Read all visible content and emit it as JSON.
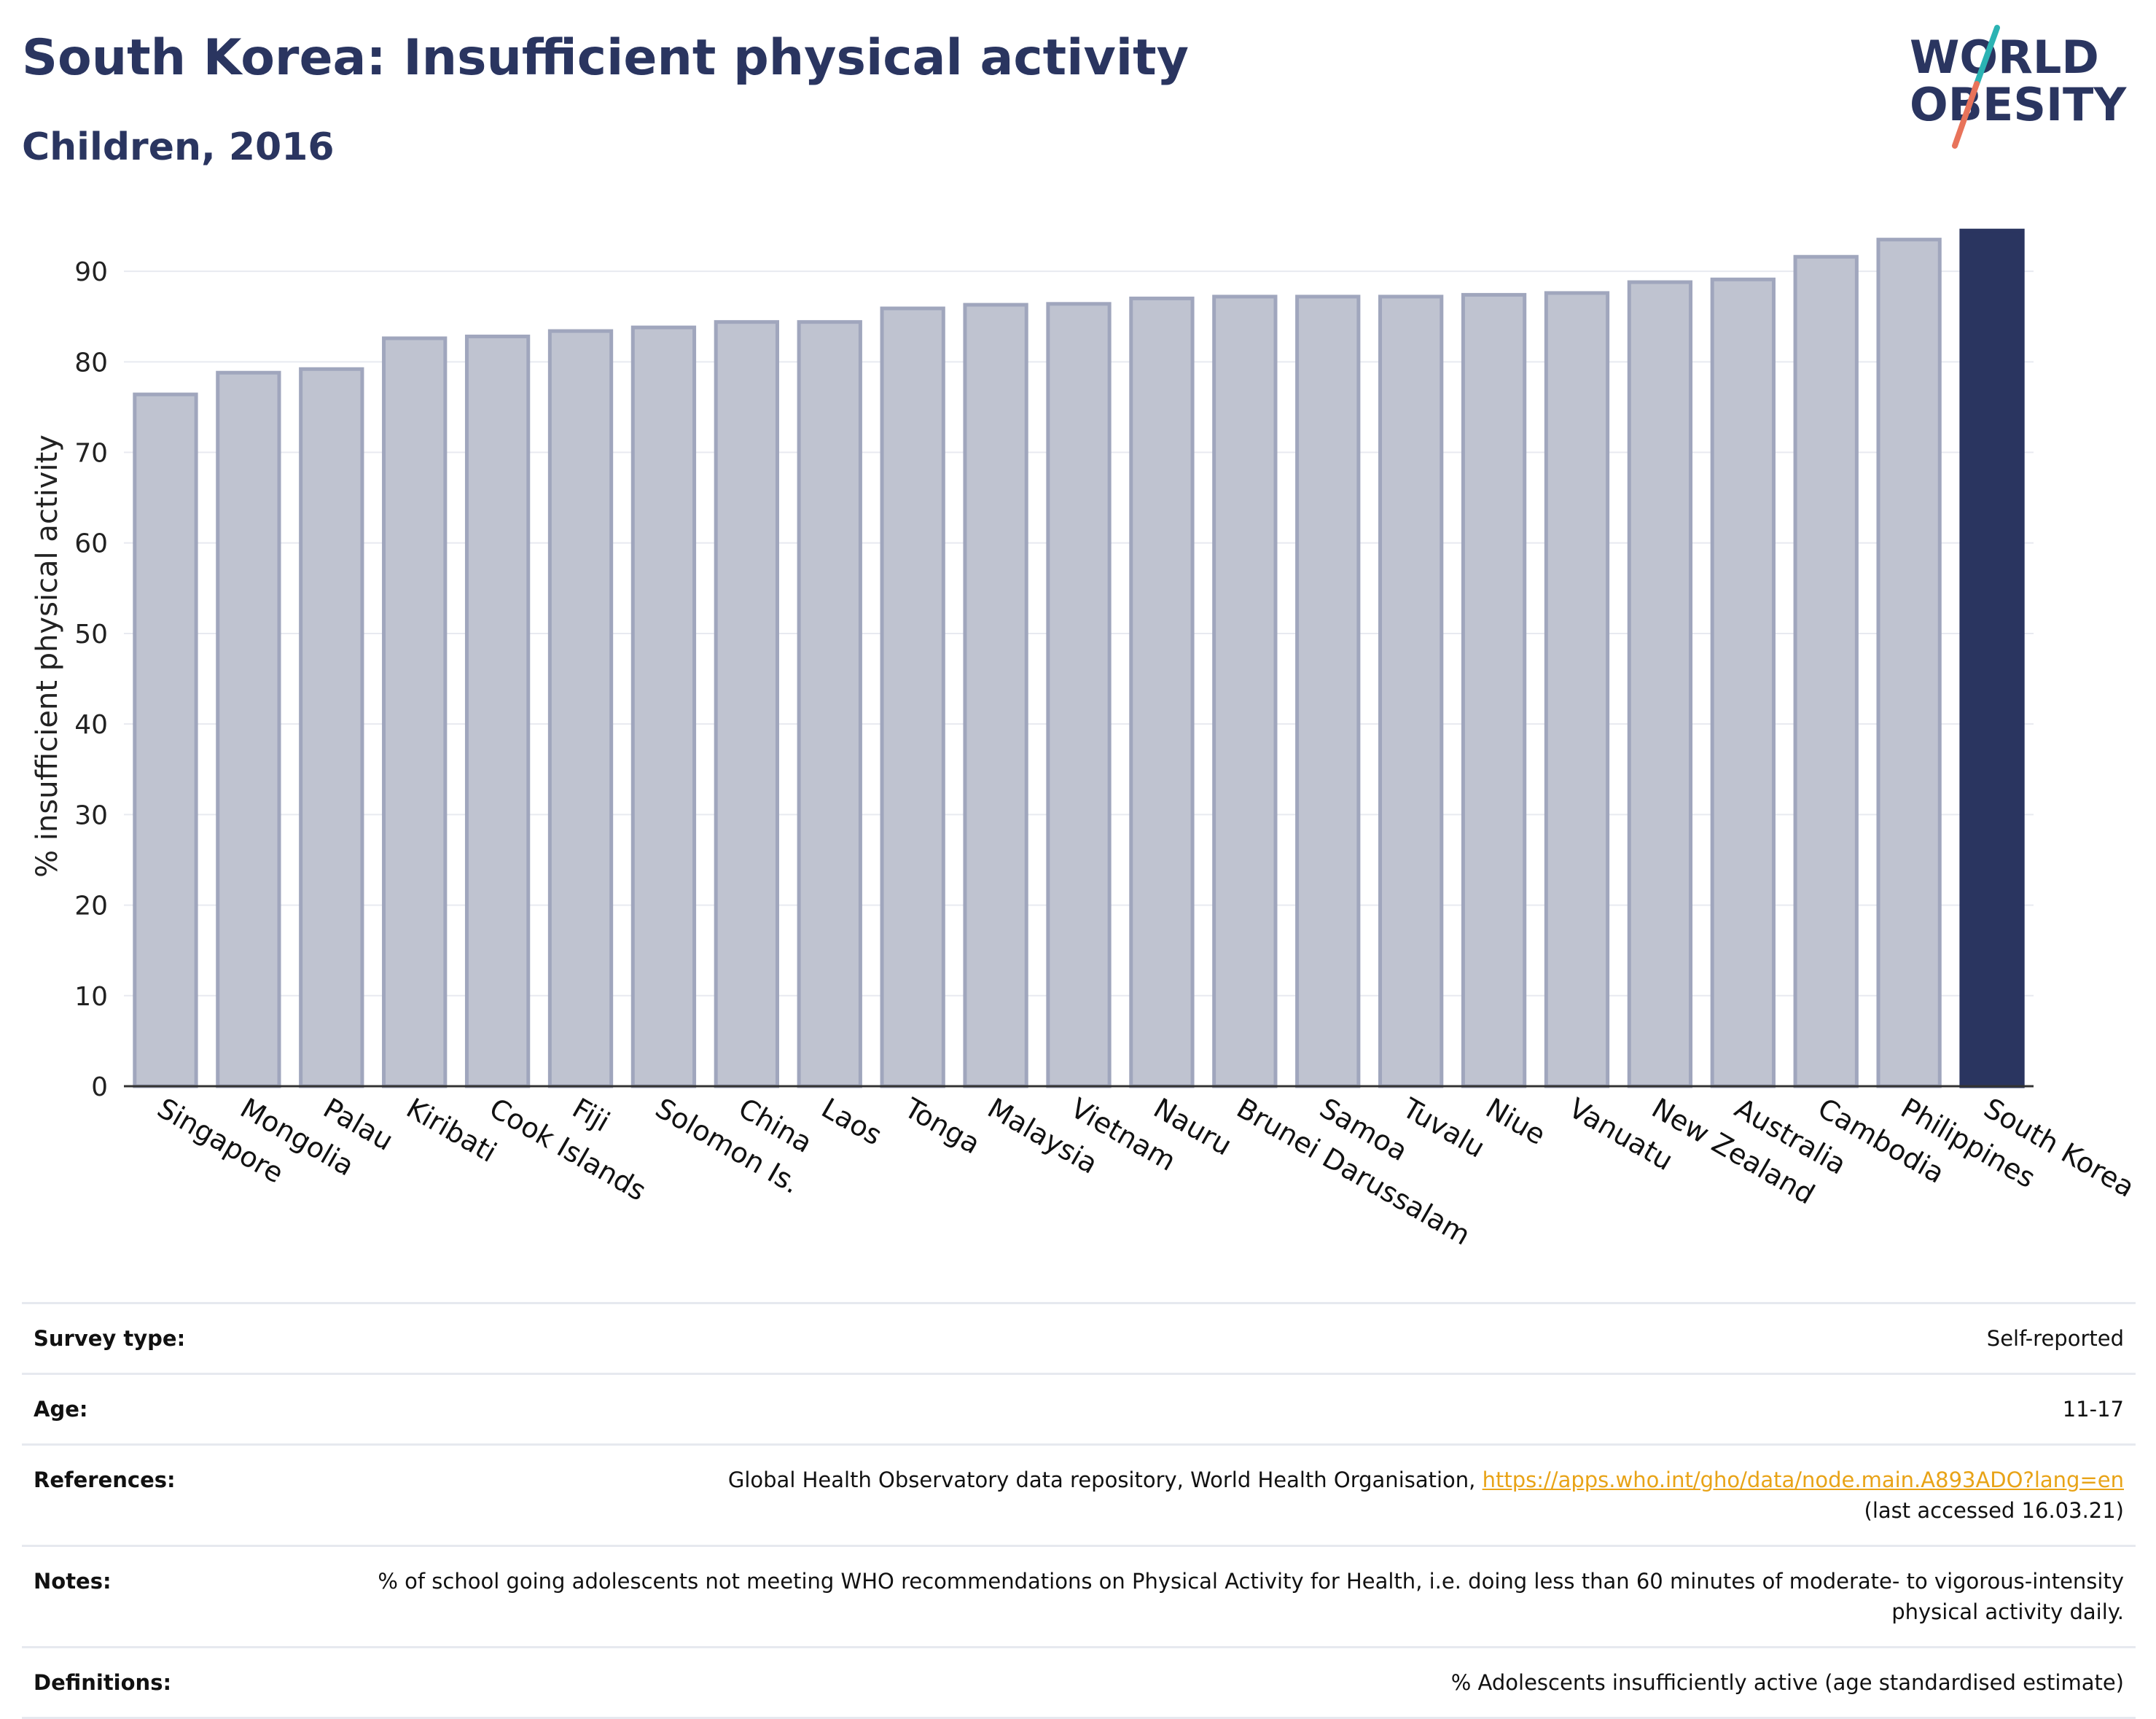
{
  "header": {
    "title": "South Korea: Insufficient physical activity",
    "subtitle": "Children, 2016"
  },
  "logo": {
    "line1": "WORLD",
    "line2": "OBESITY",
    "colors": {
      "text": "#2a3560",
      "slash_top": "#2bb3b3",
      "slash_bottom": "#e8735a"
    }
  },
  "chart_data": {
    "type": "bar",
    "title": "",
    "xlabel": "",
    "ylabel": "% insufficient physical activity",
    "ylim": [
      0,
      95
    ],
    "yticks": [
      0,
      10,
      20,
      30,
      40,
      50,
      60,
      70,
      80,
      90
    ],
    "grid": true,
    "categories": [
      "Singapore",
      "Mongolia",
      "Palau",
      "Kiribati",
      "Cook Islands",
      "Fiji",
      "Solomon Is.",
      "China",
      "Laos",
      "Tonga",
      "Malaysia",
      "Vietnam",
      "Nauru",
      "Brunei Darussalam",
      "Samoa",
      "Tuvalu",
      "Niue",
      "Vanuatu",
      "New Zealand",
      "Australia",
      "Cambodia",
      "Philippines",
      "South Korea"
    ],
    "values": [
      76.4,
      78.8,
      79.2,
      82.6,
      82.8,
      83.4,
      83.8,
      84.4,
      84.4,
      85.9,
      86.3,
      86.4,
      87.0,
      87.2,
      87.2,
      87.2,
      87.4,
      87.6,
      88.8,
      89.1,
      91.6,
      93.5,
      94.5
    ],
    "highlight": "South Korea",
    "colors": {
      "bar": "#bfc3d0",
      "bar_edge": "#a0a6bd",
      "highlight": "#2a3560"
    }
  },
  "info": [
    {
      "label": "Survey type:",
      "value": "Self-reported"
    },
    {
      "label": "Age:",
      "value": "11-17"
    },
    {
      "label": "References:",
      "value": "Global Health Observatory data repository, World Health Organisation, ",
      "link": "https://apps.who.int/gho/data/node.main.A893ADO?lang=en",
      "suffix": "(last accessed 16.03.21)"
    },
    {
      "label": "Notes:",
      "value": "% of school going adolescents not meeting WHO recommendations on Physical Activity for Health, i.e. doing less than 60 minutes of moderate- to vigorous-intensity physical activity daily."
    },
    {
      "label": "Definitions:",
      "value": "% Adolescents insufficiently active (age standardised estimate)"
    }
  ]
}
